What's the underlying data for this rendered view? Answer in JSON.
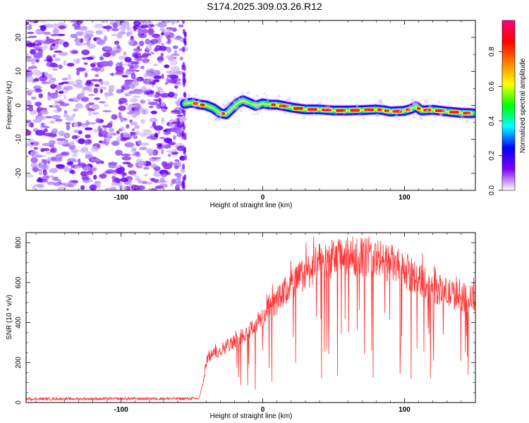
{
  "title": "S174.2025.309.03.26.R12",
  "chart_data": [
    {
      "type": "heatmap",
      "name": "spectrogram",
      "xlabel": "Height of straight line (km)",
      "ylabel": "Frequency (Hz)",
      "xlim": [
        -167,
        150
      ],
      "ylim": [
        -25,
        25
      ],
      "xticks": [
        -100,
        0,
        100
      ],
      "yticks": [
        -20,
        -10,
        0,
        10,
        20
      ],
      "noise_region_end_km": -55,
      "ridge": {
        "x": [
          -55,
          -50,
          -45,
          -40,
          -35,
          -30,
          -26,
          -22,
          -18,
          -14,
          -10,
          -5,
          0,
          5,
          10,
          20,
          30,
          40,
          50,
          60,
          70,
          80,
          85,
          90,
          100,
          105,
          108,
          112,
          120,
          130,
          140,
          148
        ],
        "y": [
          0.5,
          0.8,
          0.3,
          0.0,
          -0.8,
          -2.3,
          -2.6,
          -1.0,
          0.6,
          1.5,
          0.8,
          -0.1,
          0.6,
          0.2,
          0.2,
          -0.6,
          -1.2,
          -1.2,
          -1.5,
          -1.5,
          -1.4,
          -1.2,
          -1.4,
          -1.8,
          -1.6,
          -1.0,
          -0.3,
          -1.5,
          -1.3,
          -1.8,
          -2.2,
          -2.3
        ],
        "amplitude": [
          0.55,
          0.8,
          0.9,
          0.7,
          0.6,
          0.75,
          0.7,
          0.55,
          0.5,
          0.55,
          0.6,
          0.55,
          0.55,
          0.6,
          0.9,
          0.7,
          0.9,
          0.85,
          0.9,
          0.85,
          0.9,
          0.7,
          0.75,
          0.9,
          0.9,
          0.6,
          0.55,
          0.85,
          0.9,
          0.9,
          0.95,
          0.6
        ]
      },
      "colorbar": {
        "label": "Normalized spectral amplitude",
        "range": [
          0.0,
          0.98
        ],
        "ticks": [
          0.0,
          0.2,
          0.4,
          0.6,
          0.8
        ],
        "tick_labels": [
          "0.0",
          "0.2",
          "0.4",
          "0.6",
          "0.8"
        ],
        "stops": [
          "#ffffff",
          "#8000ff",
          "#0000ff",
          "#00ffff",
          "#00ff00",
          "#ffff00",
          "#ff8000",
          "#ff0000",
          "#ff0080"
        ]
      }
    },
    {
      "type": "line",
      "name": "snr",
      "xlabel": "Height of straight line (km)",
      "ylabel": "SNR (10 * v/v)",
      "xlim": [
        -167,
        150
      ],
      "ylim": [
        0,
        850
      ],
      "xticks": [
        -100,
        0,
        100
      ],
      "yticks": [
        0,
        200,
        400,
        600,
        800
      ],
      "color": "#ff3333",
      "series": [
        {
          "name": "SNR",
          "envelope_x": [
            -167,
            -45,
            -42,
            -40,
            -38,
            -30,
            -20,
            -15,
            -10,
            -5,
            0,
            10,
            20,
            30,
            40,
            50,
            60,
            70,
            80,
            90,
            100,
            110,
            120,
            130,
            140,
            150
          ],
          "envelope_y": [
            18,
            20,
            100,
            200,
            230,
            260,
            300,
            330,
            350,
            390,
            420,
            500,
            580,
            640,
            690,
            710,
            720,
            720,
            710,
            690,
            650,
            610,
            570,
            540,
            520,
            510
          ]
        }
      ]
    }
  ]
}
